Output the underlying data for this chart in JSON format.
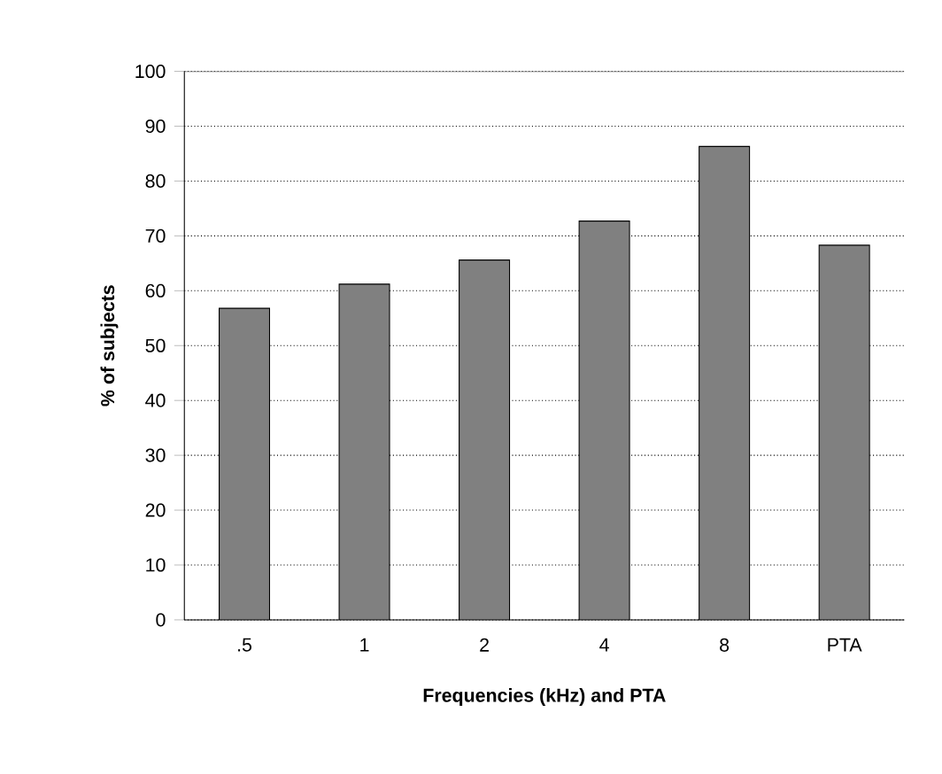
{
  "chart_data": {
    "type": "bar",
    "xlabel": "Frequencies (kHz) and PTA",
    "ylabel": "% of subjects",
    "categories": [
      ".5",
      "1",
      "2",
      "4",
      "8",
      "PTA"
    ],
    "values": [
      56.8,
      61.2,
      65.6,
      72.7,
      86.3,
      68.3
    ],
    "color": "#808080",
    "ylim": [
      0,
      100
    ],
    "yticks": [
      0,
      10,
      20,
      30,
      40,
      50,
      60,
      70,
      80,
      90,
      100
    ],
    "grid": "y"
  }
}
